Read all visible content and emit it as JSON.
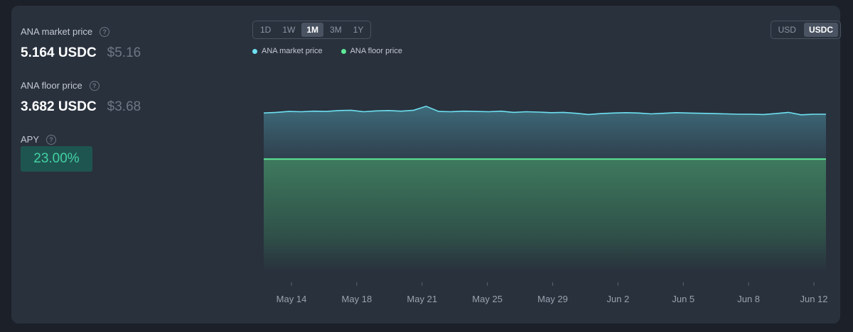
{
  "stats": {
    "market_label": "ANA market price",
    "market_usdc": "5.164 USDC",
    "market_usd": "$5.16",
    "floor_label": "ANA floor price",
    "floor_usdc": "3.682 USDC",
    "floor_usd": "$3.68",
    "apy_label": "APY",
    "apy_value": "23.00%",
    "help_glyph": "?"
  },
  "controls": {
    "ranges": [
      "1D",
      "1W",
      "1M",
      "3M",
      "1Y"
    ],
    "active_range": "1M",
    "currencies": [
      "USD",
      "USDC"
    ],
    "active_currency": "USDC"
  },
  "colors": {
    "market_line": "#6ee0f0",
    "floor_line": "#5ee895",
    "apy_text": "#43d1a4"
  },
  "chart_data": {
    "type": "area",
    "x_ticks": [
      "May 14",
      "May 18",
      "May 21",
      "May 25",
      "May 29",
      "Jun 2",
      "Jun 5",
      "Jun 8",
      "Jun 12"
    ],
    "series": [
      {
        "name": "ANA market price",
        "values": [
          5.2,
          5.22,
          5.25,
          5.24,
          5.26,
          5.25,
          5.28,
          5.29,
          5.24,
          5.27,
          5.28,
          5.26,
          5.29,
          5.42,
          5.25,
          5.24,
          5.26,
          5.25,
          5.24,
          5.26,
          5.22,
          5.24,
          5.23,
          5.21,
          5.22,
          5.19,
          5.15,
          5.18,
          5.2,
          5.21,
          5.2,
          5.17,
          5.19,
          5.21,
          5.2,
          5.19,
          5.18,
          5.17,
          5.16,
          5.16,
          5.15,
          5.18,
          5.22,
          5.14,
          5.16,
          5.16
        ]
      },
      {
        "name": "ANA floor price",
        "values": [
          3.682,
          3.682
        ]
      }
    ],
    "ylim": [
      0.0,
      6.7
    ]
  }
}
